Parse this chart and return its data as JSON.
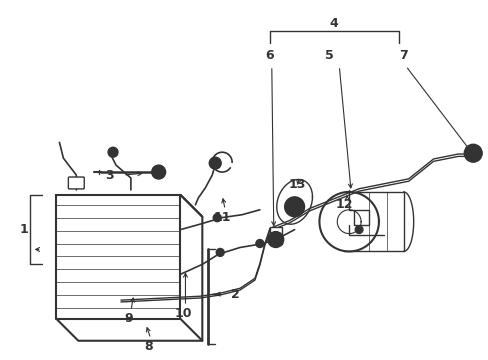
{
  "bg": "#ffffff",
  "lc": "#333333",
  "fig_w": 4.89,
  "fig_h": 3.6,
  "dpi": 100
}
